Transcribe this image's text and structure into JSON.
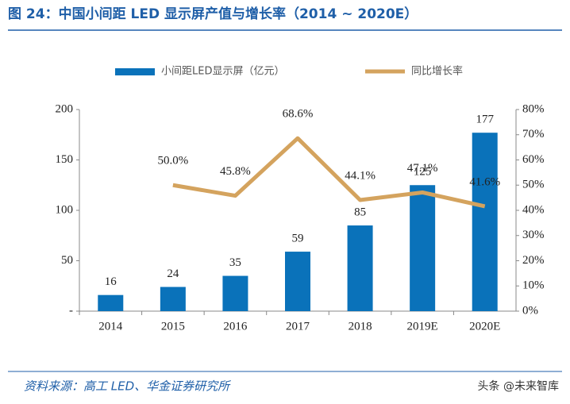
{
  "chart_data": {
    "type": "bar",
    "title": "图 24：中国小间距 LED 显示屏产值与增长率（2014 ~ 2020E）",
    "categories": [
      "2014",
      "2015",
      "2016",
      "2017",
      "2018",
      "2019E",
      "2020E"
    ],
    "series": [
      {
        "name": "小间距LED显示屏（亿元）",
        "type": "bar",
        "color": "#0a72ba",
        "values": [
          16,
          24,
          35,
          59,
          85,
          125,
          177
        ]
      },
      {
        "name": "同比增长率",
        "type": "line",
        "axis": "y2",
        "color": "#d4a35e",
        "values": [
          null,
          50.0,
          45.8,
          68.6,
          44.1,
          47.1,
          41.6
        ],
        "value_labels": [
          null,
          "50.0%",
          "45.8%",
          "68.6%",
          "44.1%",
          "47.1%",
          "41.6%"
        ]
      }
    ],
    "ylim": [
      0,
      200
    ],
    "yticks": [
      {
        "value": 0,
        "label": "-"
      },
      50,
      100,
      150,
      200
    ],
    "y2lim": [
      0,
      80
    ],
    "y2ticks": [
      {
        "value": 0,
        "label": "0%"
      },
      {
        "value": 10,
        "label": "10%"
      },
      {
        "value": 20,
        "label": "20%"
      },
      {
        "value": 30,
        "label": "30%"
      },
      {
        "value": 40,
        "label": "40%"
      },
      {
        "value": 50,
        "label": "50%"
      },
      {
        "value": 60,
        "label": "60%"
      },
      {
        "value": 70,
        "label": "70%"
      },
      {
        "value": 80,
        "label": "80%"
      }
    ],
    "grid": false,
    "source": "资料来源：高工 LED、华金证券研究所",
    "watermark": "头条 @未来智库"
  }
}
